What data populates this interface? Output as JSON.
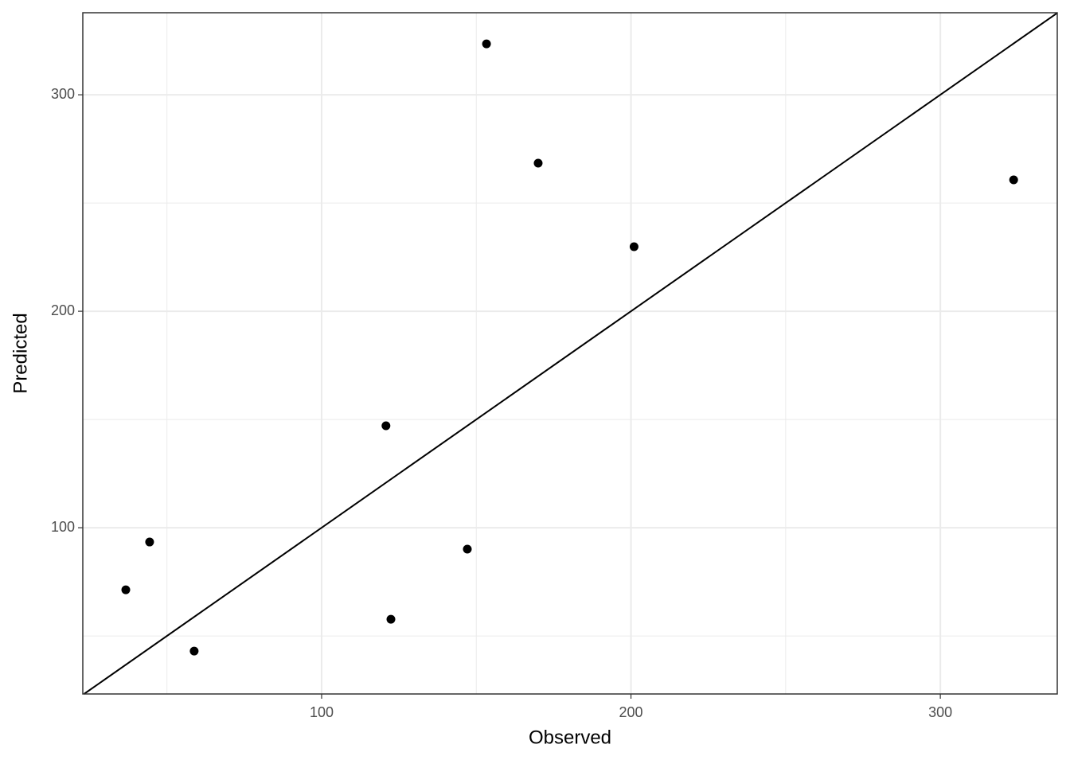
{
  "chart_data": {
    "type": "scatter",
    "x_label": "Observed",
    "y_label": "Predicted",
    "x": [
      36.7,
      44.4,
      58.8,
      120.8,
      122.4,
      147.1,
      153.3,
      170,
      201,
      323.7
    ],
    "series": [
      {
        "color": "#000000",
        "values": [
          71.3,
          93.4,
          43,
          147.1,
          57.7,
          90.1,
          323.5,
          268.4,
          229.8,
          260.7
        ]
      }
    ],
    "xlim": [
      22.8,
      337.8
    ],
    "ylim": [
      23.2,
      337.9
    ],
    "xticks": [
      100,
      200,
      300
    ],
    "yticks": [
      100,
      200,
      300
    ],
    "grid": true,
    "identity_line": true
  }
}
